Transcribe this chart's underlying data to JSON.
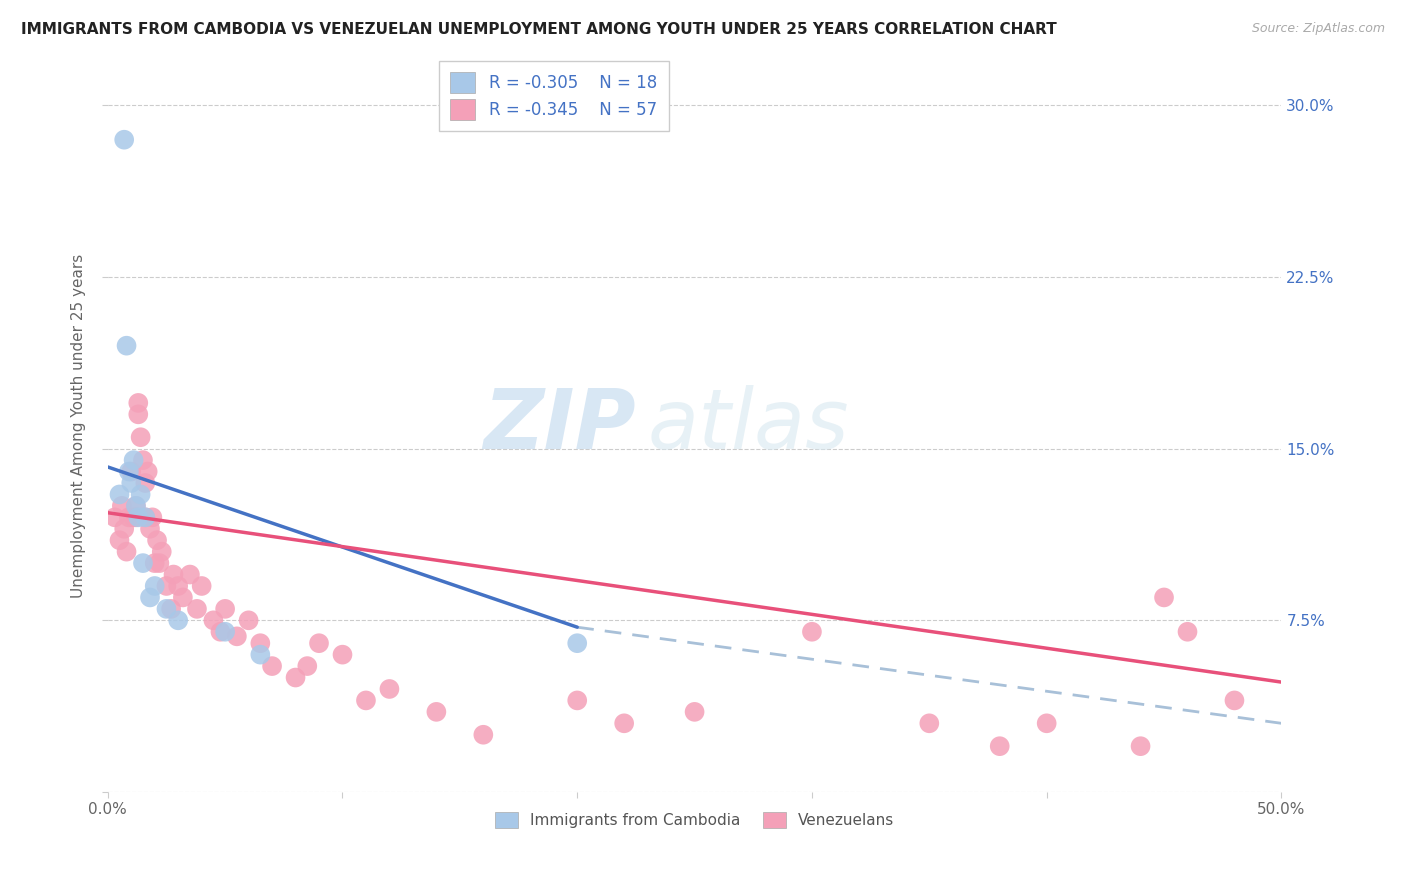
{
  "title": "IMMIGRANTS FROM CAMBODIA VS VENEZUELAN UNEMPLOYMENT AMONG YOUTH UNDER 25 YEARS CORRELATION CHART",
  "source": "Source: ZipAtlas.com",
  "ylabel": "Unemployment Among Youth under 25 years",
  "watermark_zip": "ZIP",
  "watermark_atlas": "atlas",
  "xlim": [
    0.0,
    0.5
  ],
  "ylim": [
    0.0,
    0.32
  ],
  "legend_r_cambodia": "-0.305",
  "legend_n_cambodia": "18",
  "legend_r_venezuela": "-0.345",
  "legend_n_venezuela": "57",
  "cambodia_color": "#a8c8e8",
  "venezuela_color": "#f4a0b8",
  "trendline_cambodia_color": "#4472c4",
  "trendline_venezuela_color": "#e8507a",
  "trendline_ext_color": "#a8c0d8",
  "background_color": "#ffffff",
  "grid_color": "#cccccc",
  "ytick_color": "#4472c4",
  "label_color": "#666666",
  "title_color": "#222222",
  "source_color": "#aaaaaa",
  "cambodia_x": [
    0.005,
    0.007,
    0.008,
    0.009,
    0.01,
    0.011,
    0.012,
    0.013,
    0.014,
    0.015,
    0.016,
    0.018,
    0.02,
    0.025,
    0.03,
    0.05,
    0.065,
    0.2
  ],
  "cambodia_y": [
    0.13,
    0.285,
    0.195,
    0.14,
    0.135,
    0.145,
    0.125,
    0.12,
    0.13,
    0.1,
    0.12,
    0.085,
    0.09,
    0.08,
    0.075,
    0.07,
    0.06,
    0.065
  ],
  "venezuela_x": [
    0.003,
    0.005,
    0.006,
    0.007,
    0.008,
    0.009,
    0.01,
    0.011,
    0.012,
    0.012,
    0.013,
    0.013,
    0.014,
    0.015,
    0.016,
    0.016,
    0.017,
    0.018,
    0.019,
    0.02,
    0.021,
    0.022,
    0.023,
    0.025,
    0.027,
    0.028,
    0.03,
    0.032,
    0.035,
    0.038,
    0.04,
    0.045,
    0.048,
    0.05,
    0.055,
    0.06,
    0.065,
    0.07,
    0.08,
    0.085,
    0.09,
    0.1,
    0.11,
    0.12,
    0.14,
    0.16,
    0.2,
    0.22,
    0.25,
    0.3,
    0.35,
    0.38,
    0.4,
    0.44,
    0.45,
    0.46,
    0.48
  ],
  "venezuela_y": [
    0.12,
    0.11,
    0.125,
    0.115,
    0.105,
    0.12,
    0.14,
    0.12,
    0.125,
    0.12,
    0.165,
    0.17,
    0.155,
    0.145,
    0.135,
    0.12,
    0.14,
    0.115,
    0.12,
    0.1,
    0.11,
    0.1,
    0.105,
    0.09,
    0.08,
    0.095,
    0.09,
    0.085,
    0.095,
    0.08,
    0.09,
    0.075,
    0.07,
    0.08,
    0.068,
    0.075,
    0.065,
    0.055,
    0.05,
    0.055,
    0.065,
    0.06,
    0.04,
    0.045,
    0.035,
    0.025,
    0.04,
    0.03,
    0.035,
    0.07,
    0.03,
    0.02,
    0.03,
    0.02,
    0.085,
    0.07,
    0.04
  ],
  "cam_trend_x0": 0.0,
  "cam_trend_y0": 0.142,
  "cam_trend_x1": 0.2,
  "cam_trend_y1": 0.072,
  "cam_trend_ext_x1": 0.5,
  "cam_trend_ext_y1": 0.03,
  "ven_trend_x0": 0.0,
  "ven_trend_y0": 0.122,
  "ven_trend_x1": 0.5,
  "ven_trend_y1": 0.048
}
